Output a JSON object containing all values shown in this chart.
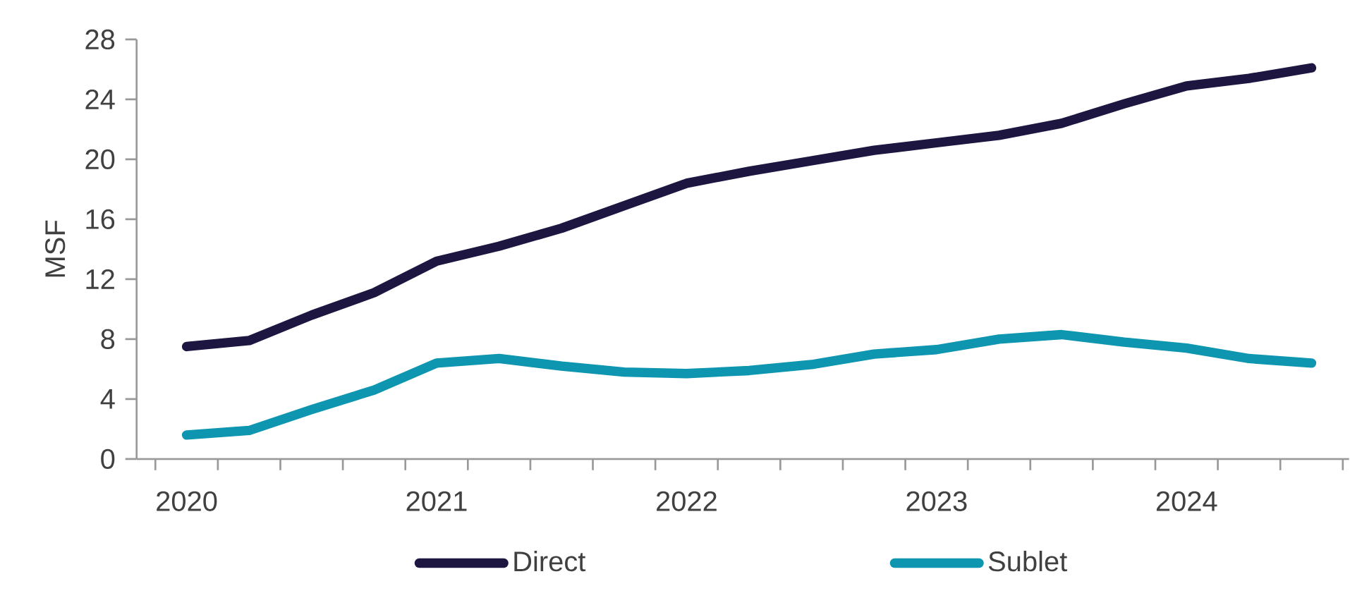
{
  "chart_data": {
    "type": "line",
    "ylabel": "MSF",
    "categories": [
      "2020",
      null,
      null,
      null,
      "2021",
      null,
      null,
      null,
      "2022",
      null,
      null,
      null,
      "2023",
      null,
      null,
      null,
      "2024",
      null,
      null
    ],
    "series": [
      {
        "name": "Direct",
        "color": "#1c1640",
        "values": [
          7.5,
          7.9,
          9.6,
          11.1,
          13.2,
          14.2,
          15.4,
          16.9,
          18.4,
          19.2,
          19.9,
          20.6,
          21.1,
          21.6,
          22.4,
          23.7,
          24.9,
          25.4,
          26.1
        ]
      },
      {
        "name": "Sublet",
        "color": "#0e96b0",
        "values": [
          1.6,
          1.9,
          3.3,
          4.6,
          6.4,
          6.7,
          6.2,
          5.8,
          5.7,
          5.9,
          6.3,
          7.0,
          7.3,
          8.0,
          8.3,
          7.8,
          7.4,
          6.7,
          6.4
        ]
      }
    ],
    "ylim": [
      0,
      28
    ],
    "yticks": [
      0,
      4,
      8,
      12,
      16,
      20,
      24,
      28
    ],
    "grid": false,
    "legend": "bottom",
    "marker": "none",
    "line_style": "solid"
  }
}
